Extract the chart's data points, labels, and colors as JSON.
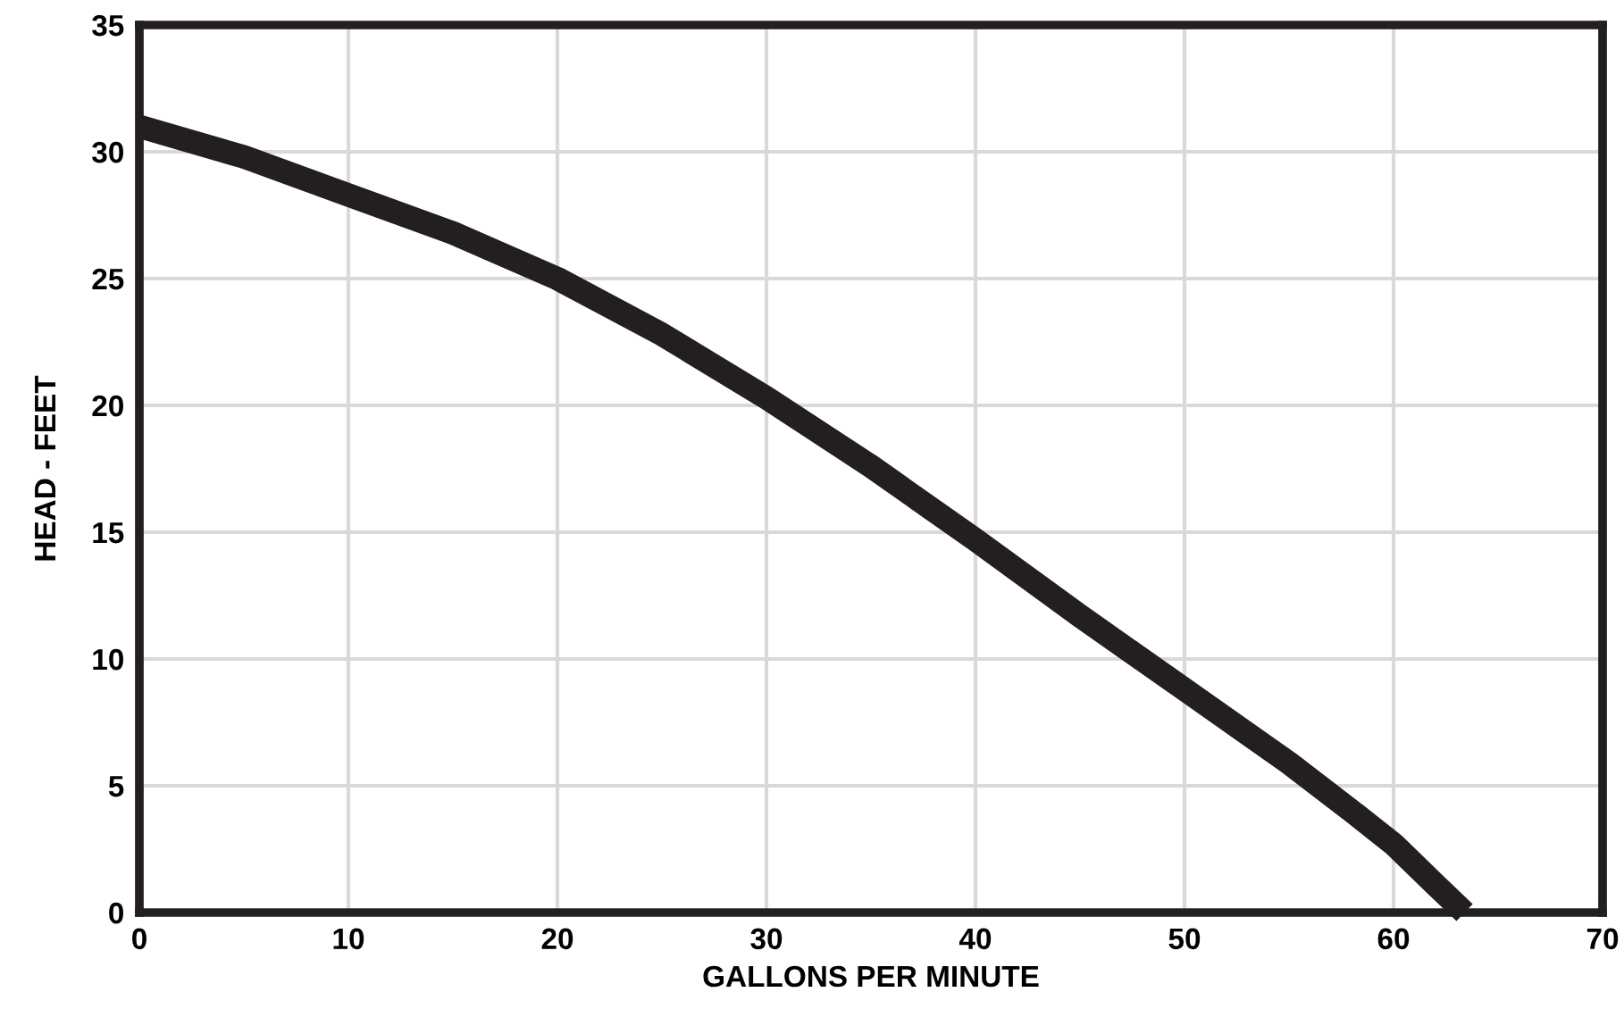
{
  "chart_data": {
    "type": "line",
    "xlabel": "GALLONS PER MINUTE",
    "ylabel": "HEAD - FEET",
    "x": [
      0,
      5,
      10,
      15,
      20,
      25,
      30,
      35,
      40,
      45,
      50,
      55,
      58,
      60,
      62,
      63.4
    ],
    "series": [
      {
        "color": "#231f20",
        "values": [
          31,
          29.8,
          28.3,
          26.8,
          25,
          22.8,
          20.3,
          17.6,
          14.7,
          11.7,
          8.8,
          5.9,
          4,
          2.7,
          1.1,
          0
        ]
      }
    ],
    "xlim": [
      0,
      70
    ],
    "ylim": [
      0,
      35
    ],
    "xticks": [
      0,
      10,
      20,
      30,
      40,
      50,
      60,
      70
    ],
    "yticks": [
      0,
      5,
      10,
      15,
      20,
      25,
      30,
      35
    ],
    "grid": true,
    "marker": "none",
    "line_style": "solid"
  }
}
